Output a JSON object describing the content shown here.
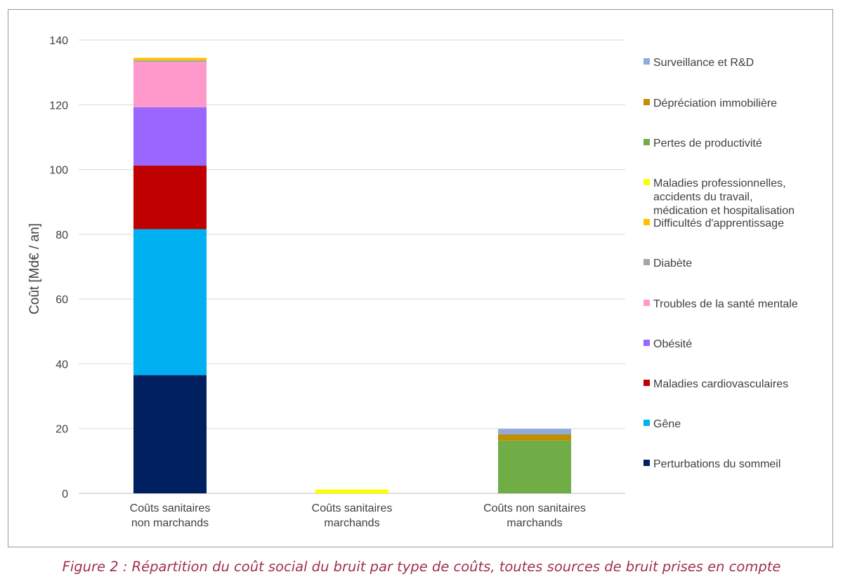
{
  "chart_data": {
    "type": "bar",
    "stacked": true,
    "ylabel": "Coût [Md€ / an]",
    "xlabel": "",
    "ylim": [
      0,
      140
    ],
    "yticks": [
      0,
      20,
      40,
      60,
      80,
      100,
      120,
      140
    ],
    "grid": true,
    "legend_position": "right",
    "categories": [
      [
        "Coûts sanitaires",
        "non marchands"
      ],
      [
        "Coûts sanitaires",
        "marchands"
      ],
      [
        "Coûts non sanitaires",
        "marchands"
      ]
    ],
    "series": [
      {
        "name": "Perturbations du sommeil",
        "color": "#002060",
        "values": [
          36.5,
          0,
          0
        ]
      },
      {
        "name": "Gêne",
        "color": "#00b0f0",
        "values": [
          45.1,
          0,
          0
        ]
      },
      {
        "name": "Maladies cardiovasculaires",
        "color": "#c00000",
        "values": [
          19.6,
          0,
          0
        ]
      },
      {
        "name": "Obésité",
        "color": "#9966ff",
        "values": [
          18.0,
          0,
          0
        ]
      },
      {
        "name": "Troubles de la santé mentale",
        "color": "#ff99cc",
        "values": [
          14.0,
          0,
          0
        ]
      },
      {
        "name": "Diabète",
        "color": "#a6a6a6",
        "values": [
          0.5,
          0,
          0
        ]
      },
      {
        "name": "Difficultés d'apprentissage",
        "color": "#ffc000",
        "values": [
          0.8,
          0,
          0
        ]
      },
      {
        "name": [
          "Maladies professionnelles,",
          "accidents du travail,",
          "médication et hospitalisation"
        ],
        "color": "#ffff00",
        "values": [
          0,
          1.2,
          0
        ]
      },
      {
        "name": "Pertes de productivité",
        "color": "#70ad47",
        "values": [
          0,
          0,
          16.3
        ]
      },
      {
        "name": "Dépréciation immobilière",
        "color": "#bf8f00",
        "values": [
          0,
          0,
          1.9
        ]
      },
      {
        "name": "Surveillance et R&D",
        "color": "#8faadc",
        "values": [
          0,
          0,
          1.7
        ]
      }
    ]
  },
  "caption": "Figure 2 : Répartition du coût social du bruit par type de coûts, toutes sources de bruit prises en compte"
}
